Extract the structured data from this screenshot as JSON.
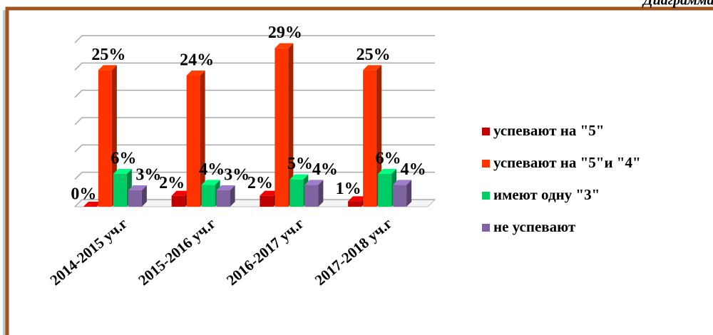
{
  "chart_data": {
    "type": "bar3d",
    "caption": "Диаграмма",
    "categories": [
      "2014-2015 уч.г",
      "2015-2016 уч.г",
      "2016-2017 уч.г",
      "2017-2018 уч.г"
    ],
    "series": [
      {
        "name": "успевают на \"5\"",
        "color": "#c00000",
        "values": [
          0,
          2,
          2,
          1
        ],
        "value_labels": [
          "0%",
          "2%",
          "2%",
          "1%"
        ]
      },
      {
        "name": "успевают на \"5\"и \"4\"",
        "color": "#ff3300",
        "values": [
          25,
          24,
          29,
          25
        ],
        "value_labels": [
          "25%",
          "24%",
          "29%",
          "25%"
        ]
      },
      {
        "name": "имеют одну \"3\"",
        "color": "#00cc66",
        "values": [
          6,
          4,
          5,
          6
        ],
        "value_labels": [
          "6%",
          "4%",
          "5%",
          "6%"
        ]
      },
      {
        "name": "не успевают",
        "color": "#8064a2",
        "values": [
          3,
          3,
          4,
          4
        ],
        "value_labels": [
          "3%",
          "3%",
          "4%",
          "4%"
        ]
      }
    ],
    "ylim": [
      0,
      30
    ],
    "yticks": [
      0,
      5,
      10,
      15,
      20,
      25,
      30
    ],
    "grid": true,
    "legend": "right"
  }
}
